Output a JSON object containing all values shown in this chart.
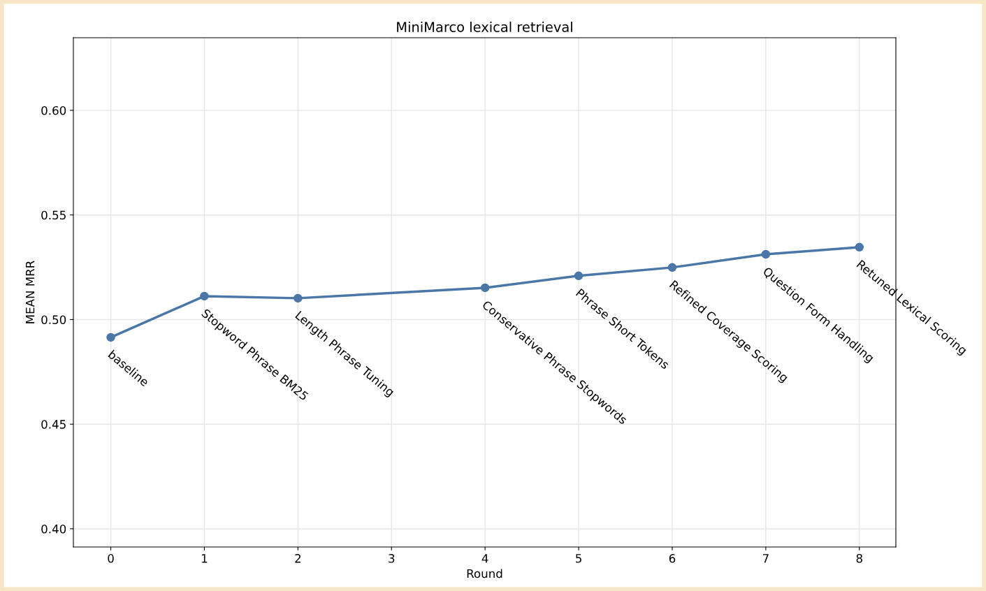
{
  "chart_data": {
    "type": "line",
    "title": "MiniMarco lexical retrieval",
    "xlabel": "Round",
    "ylabel": "MEAN MRR",
    "x": [
      0,
      1,
      2,
      4,
      5,
      6,
      7,
      8
    ],
    "series": [
      {
        "color": "#4a76a8",
        "values": [
          0.4915,
          0.5112,
          0.5102,
          0.5152,
          0.5209,
          0.5249,
          0.5312,
          0.5346
        ]
      }
    ],
    "annotations": [
      {
        "text": "baseline",
        "x": 0,
        "y": 0.4915
      },
      {
        "text": "Stopword Phrase BM25",
        "x": 1,
        "y": 0.5112
      },
      {
        "text": "Length Phrase Tuning",
        "x": 2,
        "y": 0.5102
      },
      {
        "text": "Conservative Phrase Stopwords",
        "x": 4,
        "y": 0.5152
      },
      {
        "text": "Phrase Short Tokens",
        "x": 5,
        "y": 0.5209
      },
      {
        "text": "Refined Coverage Scoring",
        "x": 6,
        "y": 0.5249
      },
      {
        "text": "Question Form Handling",
        "x": 7,
        "y": 0.5312
      },
      {
        "text": "Retuned Lexical Scoring",
        "x": 8,
        "y": 0.5346
      }
    ],
    "xlim": [
      -0.4,
      8.39
    ],
    "ylim": [
      0.3913,
      0.6347
    ],
    "xticks": [
      0,
      1,
      2,
      3,
      4,
      5,
      6,
      7,
      8
    ],
    "yticks": [
      {
        "value": 0.4,
        "label": "0.40"
      },
      {
        "value": 0.45,
        "label": "0.45"
      },
      {
        "value": 0.5,
        "label": "0.50"
      },
      {
        "value": 0.55,
        "label": "0.55"
      },
      {
        "value": 0.6,
        "label": "0.60"
      }
    ],
    "grid": true,
    "marker": "circle",
    "line_style": "solid"
  }
}
